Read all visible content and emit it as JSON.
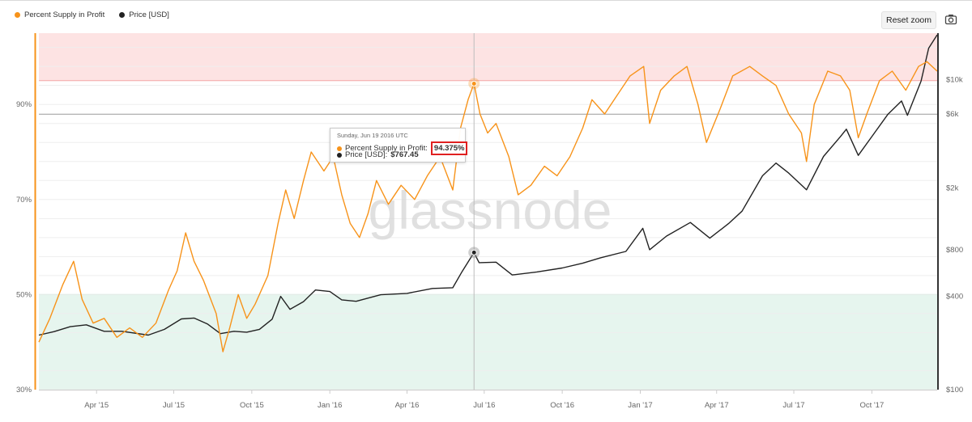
{
  "legend": {
    "items": [
      {
        "label": "Percent Supply in Profit",
        "color": "#f7931a"
      },
      {
        "label": "Price [USD]",
        "color": "#222222"
      }
    ]
  },
  "toolbar": {
    "reset_zoom_label": "Reset zoom",
    "camera_icon": "camera-icon"
  },
  "watermark": "glassnode",
  "tooltip": {
    "date": "Sunday, Jun 19 2016 UTC",
    "series1_label": "Percent Supply in Profit:",
    "series1_value": "94.375%",
    "series2_label": "Price [USD]:",
    "series2_value": "$767.45"
  },
  "colors": {
    "profit_line": "#f7931a",
    "price_line": "#222222",
    "upper_band": "#fde3e3",
    "lower_band": "#e6f5ee",
    "upper_band_edge": "#f4a6a6",
    "lower_band_edge": "#8fd1b0",
    "left_axis": "#f7931a",
    "right_axis": "#333333"
  },
  "chart_data": {
    "type": "line",
    "x_tick_labels": [
      "Apr '15",
      "Jul '15",
      "Oct '15",
      "Jan '16",
      "Apr '16",
      "Jul '16",
      "Oct '16",
      "Jan '17",
      "Apr '17",
      "Jul '17",
      "Oct '17"
    ],
    "x_range": [
      "2015-01-23",
      "2017-12-17"
    ],
    "y_left": {
      "label": "",
      "unit": "%",
      "ticks": [
        "30%",
        "50%",
        "70%",
        "90%"
      ],
      "range": [
        30,
        105
      ]
    },
    "y_right": {
      "label": "",
      "scale": "log",
      "ticks": [
        "$100",
        "$400",
        "$800",
        "$2k",
        "$6k",
        "$10k"
      ],
      "tick_values": [
        100,
        400,
        800,
        2000,
        6000,
        10000
      ],
      "range": [
        100,
        20000
      ]
    },
    "bands": [
      {
        "name": "upper",
        "from": 95,
        "to": 105
      },
      {
        "name": "lower",
        "from": 30,
        "to": 50
      }
    ],
    "crosshair": {
      "x": "2016-06-19",
      "y_left": 94.375,
      "y_right": 767.45
    },
    "grid": true,
    "legend_position": "top-left",
    "series": [
      {
        "name": "Percent Supply in Profit",
        "axis": "left",
        "points": [
          [
            "2015-01-23",
            40
          ],
          [
            "2015-02-05",
            45
          ],
          [
            "2015-02-20",
            52
          ],
          [
            "2015-03-05",
            57
          ],
          [
            "2015-03-15",
            49
          ],
          [
            "2015-03-28",
            44
          ],
          [
            "2015-04-10",
            45
          ],
          [
            "2015-04-25",
            41
          ],
          [
            "2015-05-10",
            43
          ],
          [
            "2015-05-25",
            41
          ],
          [
            "2015-06-10",
            44
          ],
          [
            "2015-06-25",
            51
          ],
          [
            "2015-07-05",
            55
          ],
          [
            "2015-07-15",
            63
          ],
          [
            "2015-07-25",
            57
          ],
          [
            "2015-08-05",
            53
          ],
          [
            "2015-08-20",
            46
          ],
          [
            "2015-08-28",
            38
          ],
          [
            "2015-09-05",
            43
          ],
          [
            "2015-09-15",
            50
          ],
          [
            "2015-09-25",
            45
          ],
          [
            "2015-10-05",
            48
          ],
          [
            "2015-10-20",
            54
          ],
          [
            "2015-11-01",
            65
          ],
          [
            "2015-11-10",
            72
          ],
          [
            "2015-11-20",
            66
          ],
          [
            "2015-12-01",
            74
          ],
          [
            "2015-12-10",
            80
          ],
          [
            "2015-12-25",
            76
          ],
          [
            "2016-01-05",
            79
          ],
          [
            "2016-01-15",
            71
          ],
          [
            "2016-01-25",
            65
          ],
          [
            "2016-02-05",
            62
          ],
          [
            "2016-02-15",
            67
          ],
          [
            "2016-02-25",
            74
          ],
          [
            "2016-03-10",
            69
          ],
          [
            "2016-03-25",
            73
          ],
          [
            "2016-04-10",
            70
          ],
          [
            "2016-04-25",
            75
          ],
          [
            "2016-05-10",
            79
          ],
          [
            "2016-05-25",
            72
          ],
          [
            "2016-06-03",
            85
          ],
          [
            "2016-06-12",
            91
          ],
          [
            "2016-06-19",
            94.4
          ],
          [
            "2016-06-26",
            88
          ],
          [
            "2016-07-05",
            84
          ],
          [
            "2016-07-15",
            86
          ],
          [
            "2016-07-30",
            79
          ],
          [
            "2016-08-10",
            71
          ],
          [
            "2016-08-25",
            73
          ],
          [
            "2016-09-10",
            77
          ],
          [
            "2016-09-25",
            75
          ],
          [
            "2016-10-10",
            79
          ],
          [
            "2016-10-25",
            85
          ],
          [
            "2016-11-05",
            91
          ],
          [
            "2016-11-20",
            88
          ],
          [
            "2016-12-05",
            92
          ],
          [
            "2016-12-20",
            96
          ],
          [
            "2017-01-05",
            98
          ],
          [
            "2017-01-12",
            86
          ],
          [
            "2017-01-25",
            93
          ],
          [
            "2017-02-10",
            96
          ],
          [
            "2017-02-25",
            98
          ],
          [
            "2017-03-10",
            90
          ],
          [
            "2017-03-20",
            82
          ],
          [
            "2017-04-05",
            89
          ],
          [
            "2017-04-20",
            96
          ],
          [
            "2017-05-10",
            98
          ],
          [
            "2017-05-25",
            96
          ],
          [
            "2017-06-10",
            94
          ],
          [
            "2017-06-25",
            88
          ],
          [
            "2017-07-10",
            84
          ],
          [
            "2017-07-16",
            78
          ],
          [
            "2017-07-25",
            90
          ],
          [
            "2017-08-10",
            97
          ],
          [
            "2017-08-25",
            96
          ],
          [
            "2017-09-05",
            93
          ],
          [
            "2017-09-15",
            83
          ],
          [
            "2017-09-25",
            88
          ],
          [
            "2017-10-10",
            95
          ],
          [
            "2017-10-25",
            97
          ],
          [
            "2017-11-10",
            93
          ],
          [
            "2017-11-25",
            98
          ],
          [
            "2017-12-05",
            99
          ],
          [
            "2017-12-17",
            97
          ]
        ]
      },
      {
        "name": "Price [USD]",
        "axis": "right",
        "points": [
          [
            "2015-01-23",
            225
          ],
          [
            "2015-02-10",
            237
          ],
          [
            "2015-03-01",
            255
          ],
          [
            "2015-03-20",
            262
          ],
          [
            "2015-04-10",
            238
          ],
          [
            "2015-05-01",
            238
          ],
          [
            "2015-06-01",
            225
          ],
          [
            "2015-06-20",
            245
          ],
          [
            "2015-07-10",
            286
          ],
          [
            "2015-07-25",
            290
          ],
          [
            "2015-08-10",
            265
          ],
          [
            "2015-08-25",
            230
          ],
          [
            "2015-09-10",
            238
          ],
          [
            "2015-09-25",
            235
          ],
          [
            "2015-10-10",
            245
          ],
          [
            "2015-10-25",
            285
          ],
          [
            "2015-11-04",
            400
          ],
          [
            "2015-11-15",
            330
          ],
          [
            "2015-12-01",
            370
          ],
          [
            "2015-12-15",
            440
          ],
          [
            "2016-01-01",
            430
          ],
          [
            "2016-01-15",
            380
          ],
          [
            "2016-02-01",
            372
          ],
          [
            "2016-03-01",
            410
          ],
          [
            "2016-04-01",
            418
          ],
          [
            "2016-05-01",
            450
          ],
          [
            "2016-05-25",
            455
          ],
          [
            "2016-06-05",
            580
          ],
          [
            "2016-06-19",
            767
          ],
          [
            "2016-06-25",
            660
          ],
          [
            "2016-07-15",
            665
          ],
          [
            "2016-08-03",
            550
          ],
          [
            "2016-09-01",
            575
          ],
          [
            "2016-10-01",
            610
          ],
          [
            "2016-10-25",
            655
          ],
          [
            "2016-11-15",
            710
          ],
          [
            "2016-12-15",
            780
          ],
          [
            "2017-01-04",
            1100
          ],
          [
            "2017-01-12",
            800
          ],
          [
            "2017-02-01",
            980
          ],
          [
            "2017-03-01",
            1200
          ],
          [
            "2017-03-24",
            950
          ],
          [
            "2017-04-15",
            1180
          ],
          [
            "2017-05-01",
            1420
          ],
          [
            "2017-05-25",
            2400
          ],
          [
            "2017-06-10",
            2900
          ],
          [
            "2017-06-25",
            2500
          ],
          [
            "2017-07-16",
            1950
          ],
          [
            "2017-08-05",
            3200
          ],
          [
            "2017-08-25",
            4300
          ],
          [
            "2017-09-01",
            4800
          ],
          [
            "2017-09-15",
            3250
          ],
          [
            "2017-10-01",
            4300
          ],
          [
            "2017-10-20",
            6000
          ],
          [
            "2017-11-05",
            7300
          ],
          [
            "2017-11-12",
            5900
          ],
          [
            "2017-11-28",
            9800
          ],
          [
            "2017-12-07",
            16000
          ],
          [
            "2017-12-17",
            19500
          ]
        ]
      }
    ]
  }
}
